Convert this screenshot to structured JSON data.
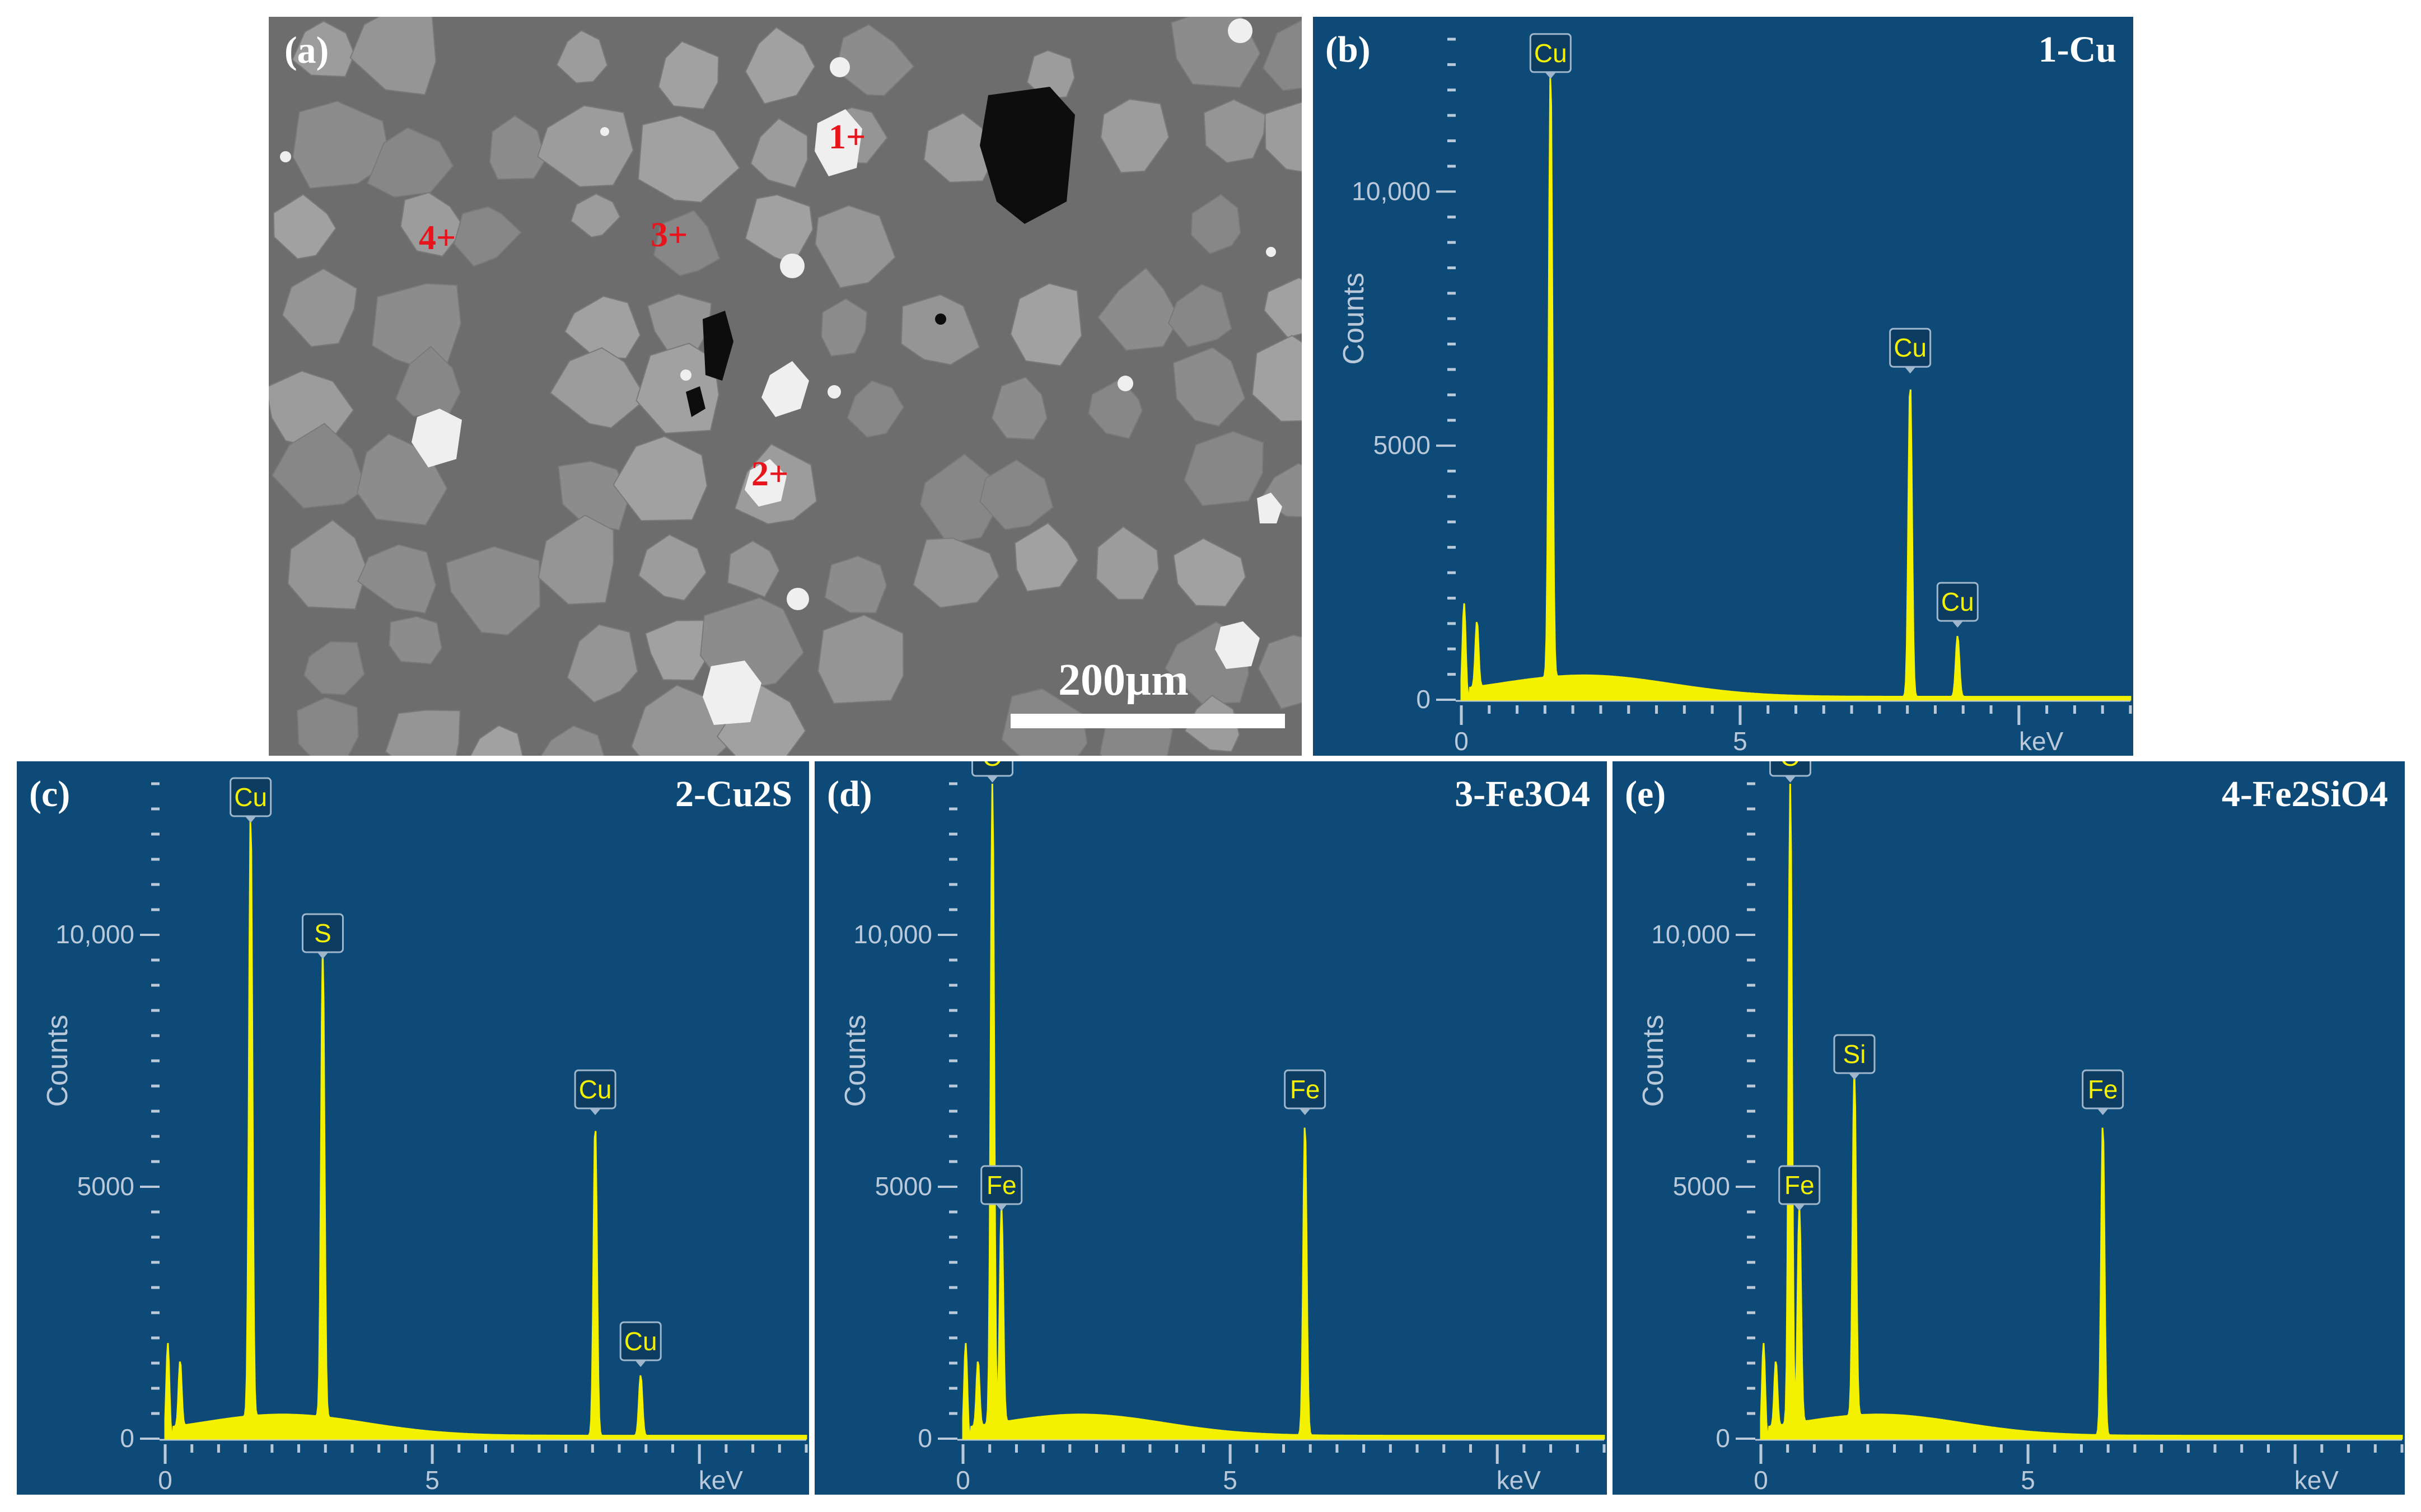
{
  "panel_a": {
    "label": "(a)",
    "scale_bar": "200µm",
    "points": [
      {
        "id": "1",
        "text": "1+"
      },
      {
        "id": "2",
        "text": "2+"
      },
      {
        "id": "3",
        "text": "3+"
      },
      {
        "id": "4",
        "text": "4+"
      }
    ],
    "colors": {
      "marker": "#e8141c",
      "matrix": "#6f6f6f",
      "grain": "#9a9a9a",
      "bright_phase": "#efefef"
    }
  },
  "colors": {
    "background": "#0e4a78",
    "spectrum": "#f3f000",
    "axis": "#b9c9d9",
    "tag_bg": "#0c3c62"
  },
  "chart_data": [
    {
      "type": "line",
      "panel": "(b)",
      "title": "1-Cu",
      "ylabel": "Counts",
      "xlabel": "keV",
      "xlim": [
        0,
        12
      ],
      "ylim": [
        0,
        13000
      ],
      "xticks": [
        "0",
        "5"
      ],
      "yticks": [
        "0",
        "5000",
        "10,000"
      ],
      "peaks": [
        {
          "element": "Cu",
          "x": 1.6,
          "y": 12000
        },
        {
          "element": "Cu",
          "x": 8.05,
          "y": 6200
        },
        {
          "element": "Cu",
          "x": 8.9,
          "y": 1200
        }
      ]
    },
    {
      "type": "line",
      "panel": "(c)",
      "title": "2-Cu2S",
      "ylabel": "Counts",
      "xlabel": "keV",
      "xlim": [
        0,
        12
      ],
      "ylim": [
        0,
        13000
      ],
      "xticks": [
        "0",
        "5"
      ],
      "yticks": [
        "0",
        "5000",
        "10,000"
      ],
      "peaks": [
        {
          "element": "Cu",
          "x": 1.6,
          "y": 12000
        },
        {
          "element": "S",
          "x": 2.95,
          "y": 9300
        },
        {
          "element": "Cu",
          "x": 8.05,
          "y": 6200
        },
        {
          "element": "Cu",
          "x": 8.9,
          "y": 1200
        }
      ]
    },
    {
      "type": "line",
      "panel": "(d)",
      "title": "3-Fe3O4",
      "ylabel": "Counts",
      "xlabel": "keV",
      "xlim": [
        0,
        12
      ],
      "ylim": [
        0,
        13000
      ],
      "xticks": [
        "0",
        "5"
      ],
      "yticks": [
        "0",
        "5000",
        "10,000"
      ],
      "peaks": [
        {
          "element": "O",
          "x": 0.55,
          "y": 12800
        },
        {
          "element": "Fe",
          "x": 0.72,
          "y": 4300
        },
        {
          "element": "Fe",
          "x": 6.4,
          "y": 6200
        }
      ]
    },
    {
      "type": "line",
      "panel": "(e)",
      "title": "4-Fe2SiO4",
      "ylabel": "Counts",
      "xlabel": "keV",
      "xlim": [
        0,
        12
      ],
      "ylim": [
        0,
        13000
      ],
      "xticks": [
        "0",
        "5"
      ],
      "yticks": [
        "0",
        "5000",
        "10,000"
      ],
      "peaks": [
        {
          "element": "O",
          "x": 0.55,
          "y": 12800
        },
        {
          "element": "Fe",
          "x": 0.72,
          "y": 4300
        },
        {
          "element": "Si",
          "x": 1.75,
          "y": 6900
        },
        {
          "element": "Fe",
          "x": 6.4,
          "y": 6200
        }
      ]
    }
  ]
}
